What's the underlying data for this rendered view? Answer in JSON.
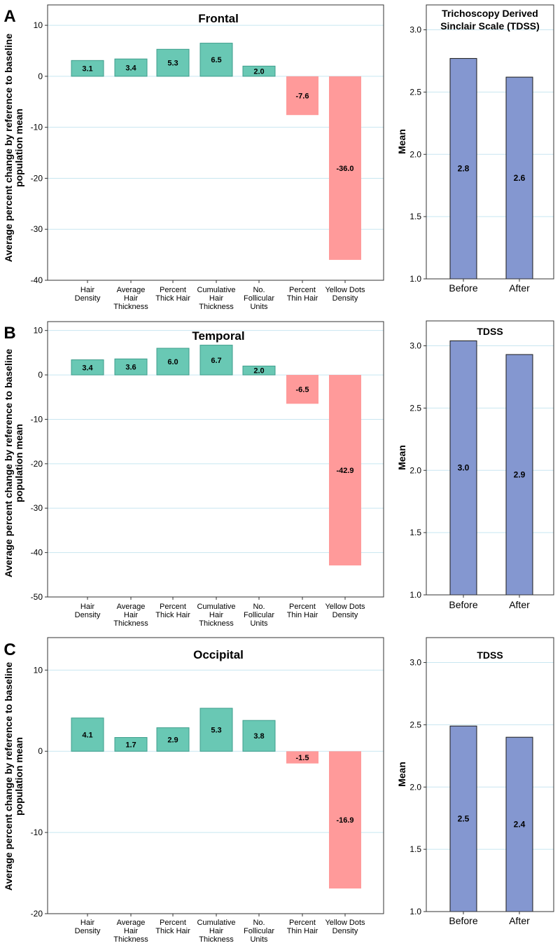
{
  "colors": {
    "positive_bar": "#69C8B4",
    "positive_edge": "#3E9E8C",
    "negative_bar": "#FF9A9A",
    "tdss_bar": "#8497D0",
    "tdss_edge": "#1A1A1A",
    "gridline": "#C8E6F0",
    "frame": "#333333"
  },
  "chart_data": [
    {
      "type": "bar",
      "panel_letter": "A",
      "title": "Frontal",
      "ylabel": "Average percent change by reference to baseline population mean",
      "categories": [
        "Hair Density",
        "Average Hair Thickness",
        "Percent Thick Hair",
        "Cumulative Hair Thickness",
        "No. Follicular Units",
        "Percent Thin Hair",
        "Yellow Dots Density"
      ],
      "tick_labels": [
        [
          "Hair",
          "Density"
        ],
        [
          "Average",
          "Hair",
          "Thickness"
        ],
        [
          "Percent",
          "Thick Hair"
        ],
        [
          "Cumulative",
          "Hair",
          "Thickness"
        ],
        [
          "No.",
          "Follicular",
          "Units"
        ],
        [
          "Percent",
          "Thin Hair"
        ],
        [
          "Yellow Dots",
          "Density"
        ]
      ],
      "values": [
        3.1,
        3.4,
        5.3,
        6.5,
        2.0,
        -7.6,
        -36.0
      ],
      "value_labels": [
        "3.1",
        "3.4",
        "5.3",
        "6.5",
        "2.0",
        "-7.6",
        "-36.0"
      ],
      "ylim": [
        -40,
        14
      ],
      "yticks": [
        -40,
        -30,
        -20,
        -10,
        0,
        10
      ],
      "grid": true
    },
    {
      "type": "bar",
      "title_lines": [
        "Trichoscopy Derived",
        "Sinclair Scale (TDSS)"
      ],
      "ylabel": "Mean",
      "categories": [
        "Before",
        "After"
      ],
      "values": [
        2.77,
        2.62
      ],
      "value_labels": [
        "2.8",
        "2.6"
      ],
      "ylim": [
        1.0,
        3.2
      ],
      "yticks": [
        1.0,
        1.5,
        2.0,
        2.5,
        3.0
      ],
      "ytick_labels": [
        "1.0",
        "1.5",
        "2.0",
        "2.5",
        "3.0"
      ],
      "grid": true
    },
    {
      "type": "bar",
      "panel_letter": "B",
      "title": "Temporal",
      "ylabel": "Average percent change by reference to baseline population mean",
      "categories": [
        "Hair Density",
        "Average Hair Thickness",
        "Percent Thick Hair",
        "Cumulative Hair Thickness",
        "No. Follicular Units",
        "Percent Thin Hair",
        "Yellow Dots Density"
      ],
      "tick_labels": [
        [
          "Hair",
          "Density"
        ],
        [
          "Average",
          "Hair",
          "Thickness"
        ],
        [
          "Percent",
          "Thick Hair"
        ],
        [
          "Cumulative",
          "Hair",
          "Thickness"
        ],
        [
          "No.",
          "Follicular",
          "Units"
        ],
        [
          "Percent",
          "Thin Hair"
        ],
        [
          "Yellow Dots",
          "Density"
        ]
      ],
      "values": [
        3.4,
        3.6,
        6.0,
        6.7,
        2.0,
        -6.5,
        -42.9
      ],
      "value_labels": [
        "3.4",
        "3.6",
        "6.0",
        "6.7",
        "2.0",
        "-6.5",
        "-42.9"
      ],
      "ylim": [
        -50,
        12
      ],
      "yticks": [
        -50,
        -40,
        -30,
        -20,
        -10,
        0,
        10
      ],
      "grid": true
    },
    {
      "type": "bar",
      "title_lines": [
        "TDSS"
      ],
      "ylabel": "Mean",
      "categories": [
        "Before",
        "After"
      ],
      "values": [
        3.04,
        2.93
      ],
      "value_labels": [
        "3.0",
        "2.9"
      ],
      "ylim": [
        1.0,
        3.2
      ],
      "yticks": [
        1.0,
        1.5,
        2.0,
        2.5,
        3.0
      ],
      "ytick_labels": [
        "1.0",
        "1.5",
        "2.0",
        "2.5",
        "3.0"
      ],
      "grid": true
    },
    {
      "type": "bar",
      "panel_letter": "C",
      "title": "Occipital",
      "ylabel": "Average percent change by reference to baseline population mean",
      "categories": [
        "Hair Density",
        "Average Hair Thickness",
        "Percent Thick Hair",
        "Cumulative Hair Thickness",
        "No. Follicular Units",
        "Percent Thin Hair",
        "Yellow Dots Density"
      ],
      "tick_labels": [
        [
          "Hair",
          "Density"
        ],
        [
          "Average",
          "Hair",
          "Thickness"
        ],
        [
          "Percent",
          "Thick Hair"
        ],
        [
          "Cumulative",
          "Hair",
          "Thickness"
        ],
        [
          "No.",
          "Follicular",
          "Units"
        ],
        [
          "Percent",
          "Thin Hair"
        ],
        [
          "Yellow Dots",
          "Density"
        ]
      ],
      "values": [
        4.1,
        1.7,
        2.9,
        5.3,
        3.8,
        -1.5,
        -16.9
      ],
      "value_labels": [
        "4.1",
        "1.7",
        "2.9",
        "5.3",
        "3.8",
        "-1.5",
        "-16.9"
      ],
      "ylim": [
        -20,
        14
      ],
      "yticks": [
        -20,
        -10,
        0,
        10
      ],
      "grid": true
    },
    {
      "type": "bar",
      "title_lines": [
        "TDSS"
      ],
      "ylabel": "Mean",
      "categories": [
        "Before",
        "After"
      ],
      "values": [
        2.49,
        2.4
      ],
      "value_labels": [
        "2.5",
        "2.4"
      ],
      "ylim": [
        1.0,
        3.2
      ],
      "yticks": [
        1.0,
        1.5,
        2.0,
        2.5,
        3.0
      ],
      "ytick_labels": [
        "1.0",
        "1.5",
        "2.0",
        "2.5",
        "3.0"
      ],
      "grid": true
    }
  ]
}
